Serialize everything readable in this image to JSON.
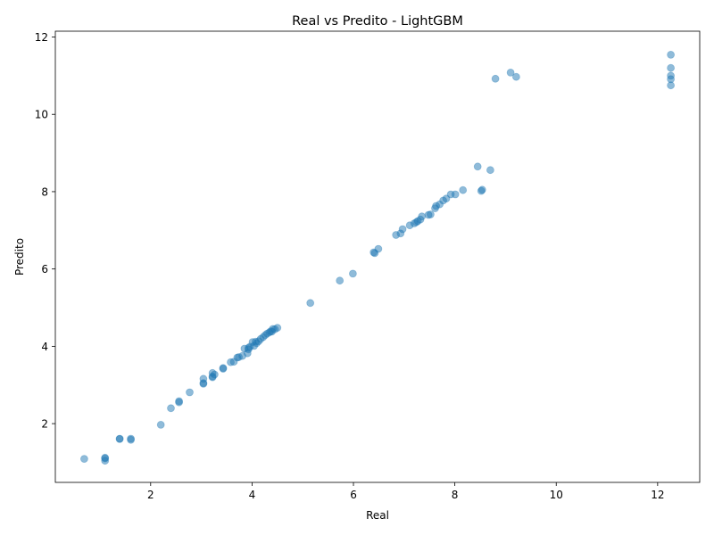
{
  "chart_data": {
    "type": "scatter",
    "title": "Real vs Predito - LightGBM",
    "xlabel": "Real",
    "ylabel": "Predito",
    "xlim": [
      0.12,
      12.83
    ],
    "ylim": [
      0.48,
      12.15
    ],
    "xticks": [
      2,
      4,
      6,
      8,
      10,
      12
    ],
    "yticks": [
      2,
      4,
      6,
      8,
      10,
      12
    ],
    "grid": false,
    "color": "#1f77b4",
    "x": [
      0.69,
      1.1,
      1.1,
      1.1,
      1.39,
      1.39,
      1.61,
      1.61,
      2.2,
      2.4,
      2.56,
      2.56,
      2.77,
      3.04,
      3.04,
      3.04,
      3.22,
      3.22,
      3.22,
      3.26,
      3.43,
      3.43,
      3.58,
      3.64,
      3.71,
      3.74,
      3.81,
      3.85,
      3.91,
      3.93,
      3.93,
      3.96,
      4.01,
      4.04,
      4.07,
      4.09,
      4.13,
      4.17,
      4.22,
      4.26,
      4.3,
      4.34,
      4.37,
      4.39,
      4.41,
      4.45,
      4.5,
      5.15,
      5.73,
      5.99,
      6.4,
      6.42,
      6.49,
      6.84,
      6.93,
      6.97,
      7.11,
      7.2,
      7.24,
      7.27,
      7.32,
      7.35,
      7.48,
      7.52,
      7.61,
      7.63,
      7.7,
      7.77,
      7.83,
      7.92,
      8.01,
      8.16,
      8.45,
      8.52,
      8.54,
      8.7,
      8.8,
      9.1,
      9.21,
      12.26,
      12.26,
      12.26,
      12.26,
      12.26
    ],
    "y": [
      1.09,
      1.1,
      1.04,
      1.12,
      1.6,
      1.61,
      1.58,
      1.61,
      1.97,
      2.4,
      2.55,
      2.58,
      2.81,
      3.03,
      3.05,
      3.16,
      3.2,
      3.31,
      3.22,
      3.27,
      3.42,
      3.44,
      3.59,
      3.6,
      3.71,
      3.72,
      3.75,
      3.94,
      3.82,
      3.92,
      3.96,
      3.99,
      4.11,
      4.01,
      4.12,
      4.08,
      4.13,
      4.19,
      4.24,
      4.29,
      4.33,
      4.36,
      4.39,
      4.38,
      4.45,
      4.44,
      4.48,
      5.12,
      5.7,
      5.88,
      6.43,
      6.41,
      6.52,
      6.88,
      6.92,
      7.03,
      7.13,
      7.18,
      7.21,
      7.24,
      7.28,
      7.36,
      7.4,
      7.41,
      7.57,
      7.63,
      7.67,
      7.77,
      7.82,
      7.93,
      7.93,
      8.04,
      8.65,
      8.02,
      8.05,
      8.56,
      10.92,
      11.08,
      10.97,
      11.54,
      11.2,
      11.0,
      10.91,
      10.75
    ]
  }
}
